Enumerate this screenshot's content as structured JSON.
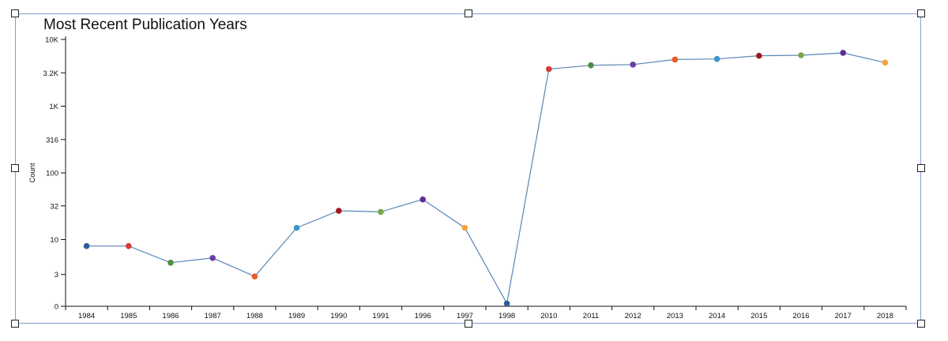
{
  "chart_data": {
    "type": "line",
    "title": "Most Recent Publication Years",
    "xlabel": "",
    "ylabel": "Count",
    "y_scale": "log",
    "yticks": [
      {
        "label": "10K",
        "value": 10000
      },
      {
        "label": "3.2K",
        "value": 3162
      },
      {
        "label": "1K",
        "value": 1000
      },
      {
        "label": "316",
        "value": 316
      },
      {
        "label": "100",
        "value": 100
      },
      {
        "label": "32",
        "value": 32
      },
      {
        "label": "10",
        "value": 10
      },
      {
        "label": "3",
        "value": 3
      },
      {
        "label": "0",
        "value": 1
      }
    ],
    "categories": [
      "1984",
      "1985",
      "1986",
      "1987",
      "1988",
      "1989",
      "1990",
      "1991",
      "1996",
      "1997",
      "1998",
      "2010",
      "2011",
      "2012",
      "2013",
      "2014",
      "2015",
      "2016",
      "2017",
      "2018"
    ],
    "values": [
      8,
      8,
      4.5,
      5.3,
      2.8,
      15,
      27,
      26,
      40,
      15,
      1.1,
      3600,
      4100,
      4200,
      5000,
      5100,
      5700,
      5800,
      6300,
      4500
    ],
    "point_colors": [
      "#2c5c97",
      "#d33d32",
      "#4e8e42",
      "#6a3fa8",
      "#ea5a2a",
      "#3f93c9",
      "#a3181c",
      "#79a64d",
      "#5b2d97",
      "#f4a23b",
      "#2c5c97",
      "#d33d32",
      "#4e8e42",
      "#6a3fa8",
      "#ea5a2a",
      "#3f93c9",
      "#a3181c",
      "#79a64d",
      "#5b2d97",
      "#f4a23b"
    ],
    "line_color": "#5b86b8",
    "grid": false,
    "legend": "none"
  }
}
